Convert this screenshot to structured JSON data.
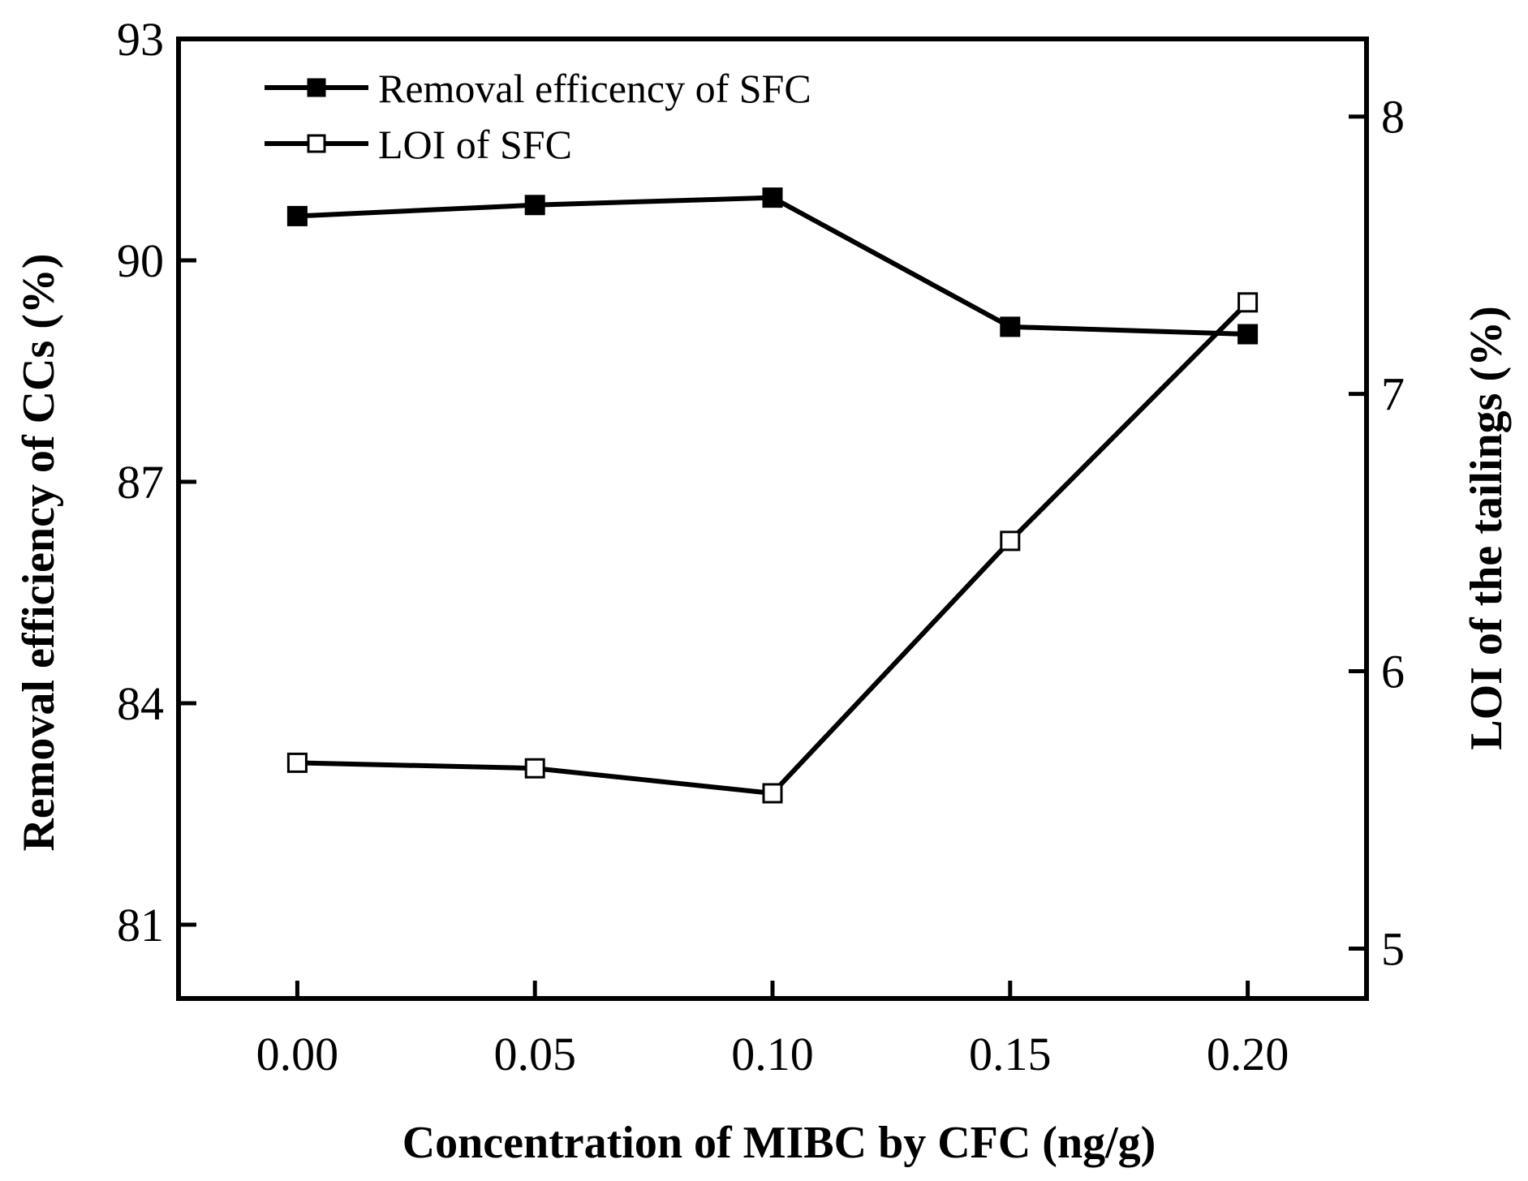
{
  "chart_data": {
    "type": "line",
    "title": "",
    "xlabel": "Concentration of MIBC by CFC (ng/g)",
    "ylabel_left": "Removal efficiency of CCs (%)",
    "ylabel_right": "LOI of the tailings  (%)",
    "x": [
      0.0,
      0.05,
      0.1,
      0.15,
      0.2
    ],
    "x_tick_labels": [
      "0.00",
      "0.05",
      "0.10",
      "0.15",
      "0.20"
    ],
    "xlim": [
      -0.025,
      0.225
    ],
    "ylim_left": [
      80.0,
      93.0
    ],
    "ylim_right": [
      4.82,
      8.28
    ],
    "y_left_ticks": [
      81,
      84,
      87,
      90,
      93
    ],
    "y_right_ticks": [
      5,
      6,
      7,
      8
    ],
    "legend_position": "top-left",
    "grid": false,
    "series": [
      {
        "name": "Removal efficency of SFC",
        "axis": "left",
        "marker": "filled-square",
        "values": [
          90.6,
          90.75,
          90.85,
          89.1,
          89.0
        ]
      },
      {
        "name": "LOI of SFC",
        "axis": "right",
        "marker": "open-square",
        "values": [
          5.67,
          5.65,
          5.56,
          6.47,
          7.33
        ]
      }
    ]
  }
}
